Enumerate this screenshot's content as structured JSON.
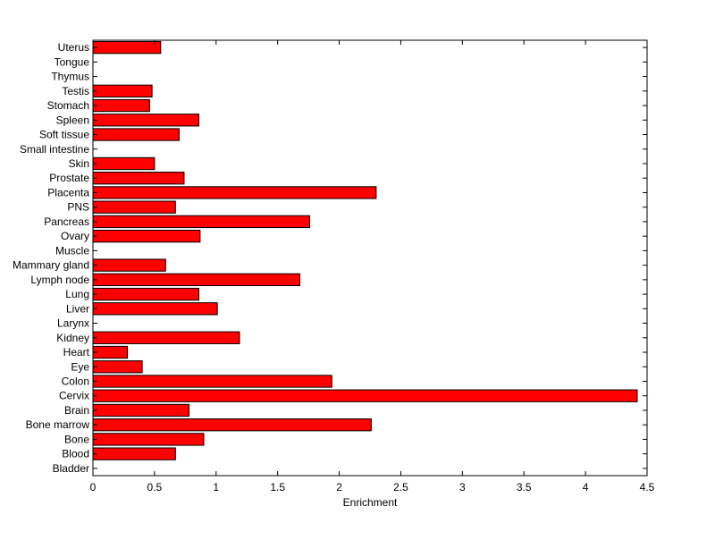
{
  "chart_data": {
    "type": "bar",
    "orientation": "horizontal",
    "title": "",
    "xlabel": "Enrichment",
    "ylabel": "",
    "xlim": [
      0,
      4.5
    ],
    "xticks": [
      0,
      0.5,
      1,
      1.5,
      2,
      2.5,
      3,
      3.5,
      4,
      4.5
    ],
    "xtick_labels": [
      "0",
      "0.5",
      "1",
      "1.5",
      "2",
      "2.5",
      "3",
      "3.5",
      "4",
      "4.5"
    ],
    "grid": false,
    "legend": "none",
    "bar_color": "#ff0000",
    "bar_edge_color": "#000000",
    "categories": [
      "Uterus",
      "Tongue",
      "Thymus",
      "Testis",
      "Stomach",
      "Spleen",
      "Soft tissue",
      "Small intestine",
      "Skin",
      "Prostate",
      "Placenta",
      "PNS",
      "Pancreas",
      "Ovary",
      "Muscle",
      "Mammary gland",
      "Lymph node",
      "Lung",
      "Liver",
      "Larynx",
      "Kidney",
      "Heart",
      "Eye",
      "Colon",
      "Cervix",
      "Brain",
      "Bone marrow",
      "Bone",
      "Blood",
      "Bladder"
    ],
    "values": [
      0.55,
      0,
      0,
      0.48,
      0.46,
      0.86,
      0.7,
      0,
      0.5,
      0.74,
      2.3,
      0.67,
      1.76,
      0.87,
      0,
      0.59,
      1.68,
      0.86,
      1.01,
      0,
      1.19,
      0.28,
      0.4,
      1.94,
      4.42,
      0.78,
      2.26,
      0.9,
      0.67,
      0
    ]
  }
}
